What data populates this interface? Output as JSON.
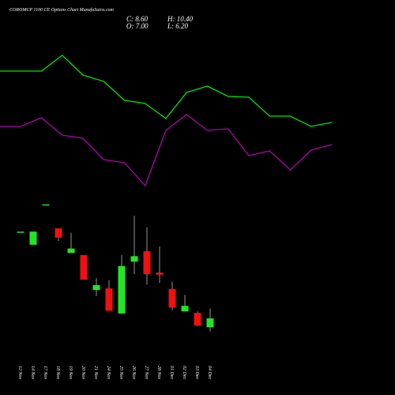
{
  "chart_data": [
    {
      "type": "line",
      "ylim": [
        0,
        300
      ],
      "series": [
        {
          "color": "#00e600",
          "values": [
            210,
            210,
            210,
            230,
            205,
            197,
            173,
            169,
            150,
            183,
            191,
            178,
            177,
            153,
            153,
            140,
            145
          ]
        },
        {
          "color": "#b000b0",
          "values": [
            140,
            140,
            151,
            129,
            125,
            98,
            94,
            65,
            135,
            155,
            135,
            137,
            103,
            109,
            85,
            110,
            117
          ]
        }
      ]
    },
    {
      "type": "candlestick",
      "title": "COROMCP 1100 CE Options Chart MunafaSutra.com",
      "info": [
        "C: 8.60",
        "H: 10.40",
        "O: 7.00",
        "L: 6.20"
      ],
      "categories": [
        "12 Nov",
        "14 Nov",
        "17 Nov",
        "18 Nov",
        "19 Nov",
        "20 Nov",
        "21 Nov",
        "24 Nov",
        "25 Nov",
        "26 Nov",
        "27 Nov",
        "28 Nov",
        "01 Dec",
        "02 Dec",
        "03 Dec",
        "04 Dec"
      ],
      "open": [
        24.5,
        22.1,
        29.5,
        25.1,
        20.6,
        20.2,
        13.8,
        14.1,
        9.5,
        19.0,
        20.9,
        17.0,
        14.0,
        9.9,
        9.6,
        7.0
      ],
      "high": [
        24.5,
        24.5,
        29.5,
        25.1,
        24.3,
        20.2,
        16.0,
        15.6,
        20.2,
        27.4,
        25.3,
        21.8,
        15.3,
        12.9,
        9.9,
        10.4
      ],
      "low": [
        24.5,
        22.1,
        29.5,
        22.8,
        20.6,
        15.7,
        12.7,
        10.0,
        9.5,
        16.7,
        14.8,
        15.1,
        10.1,
        9.9,
        7.2,
        6.2
      ],
      "close": [
        24.5,
        24.5,
        29.5,
        23.4,
        21.4,
        15.7,
        14.7,
        10.0,
        18.2,
        20.0,
        16.7,
        16.6,
        10.6,
        10.9,
        7.3,
        8.6
      ],
      "up_color": "#22e622",
      "down_color": "#ee1111",
      "ylim": [
        4.7,
        32.2
      ]
    }
  ]
}
